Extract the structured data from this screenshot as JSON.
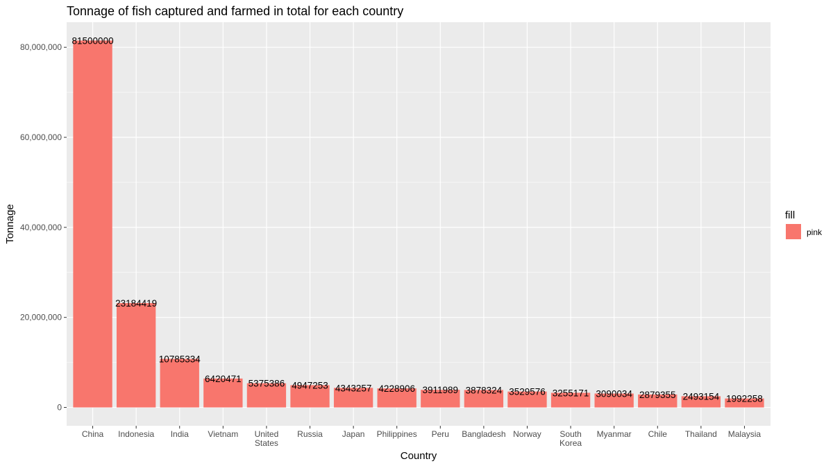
{
  "chart_data": {
    "type": "bar",
    "title": "Tonnage of fish captured and farmed in total for each country",
    "xlabel": "Country",
    "ylabel": "Tonnage",
    "categories": [
      "China",
      "Indonesia",
      "India",
      "Vietnam",
      "United States",
      "Russia",
      "Japan",
      "Philippines",
      "Peru",
      "Bangladesh",
      "Norway",
      "South Korea",
      "Myanmar",
      "Chile",
      "Thailand",
      "Malaysia"
    ],
    "values": [
      81500000,
      23184419,
      10785334,
      6420471,
      5375386,
      4947253,
      4343257,
      4228906,
      3911989,
      3878324,
      3529576,
      3255171,
      3090034,
      2879355,
      2493154,
      1992258
    ],
    "data_labels": [
      "81500000",
      "23184419",
      "10785334",
      "6420471",
      "5375386",
      "4947253",
      "4343257",
      "4228906",
      "3911989",
      "3878324",
      "3529576",
      "3255171",
      "3090034",
      "2879355",
      "2493154",
      "1992258"
    ],
    "y_ticks": [
      0,
      20000000,
      40000000,
      60000000,
      80000000
    ],
    "y_tick_labels": [
      "0",
      "20,000,000",
      "40,000,000",
      "60,000,000",
      "80,000,000"
    ],
    "ylim": [
      -4075000,
      85575000
    ],
    "grid": true,
    "legend": {
      "title": "fill",
      "entries": [
        {
          "label": "pink",
          "color": "#F8766D"
        }
      ],
      "placement": "right"
    },
    "colors": {
      "bar": "#F8766D",
      "panel": "#EBEBEB",
      "grid": "#FFFFFF"
    }
  }
}
